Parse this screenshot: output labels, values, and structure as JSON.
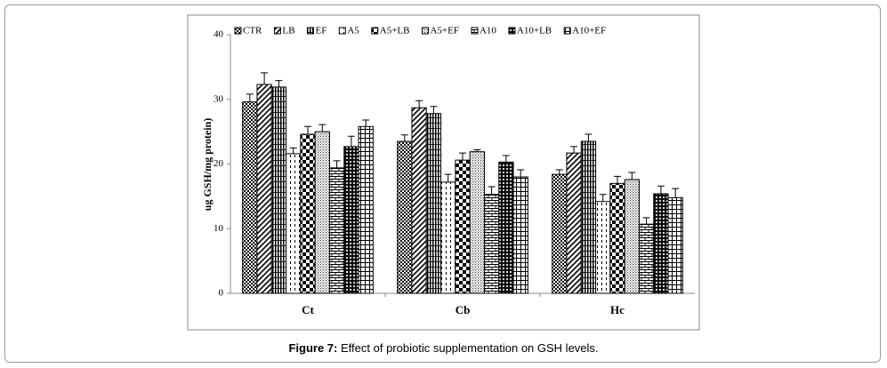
{
  "chart_data": {
    "type": "bar",
    "caption_label": "Figure 7:",
    "caption": "Effect of probiotic supplementation on GSH levels.",
    "y_label": "ug GSH/mg protein)",
    "categories": [
      "Ct",
      "Cb",
      "Hc"
    ],
    "ylim": [
      0,
      40
    ],
    "yticks": [
      0,
      10,
      20,
      30,
      40
    ],
    "legend": "top",
    "series": [
      {
        "name": "CTR",
        "color": "#000000",
        "pattern": "checker",
        "values": [
          29.6,
          23.5,
          18.4
        ],
        "errors": [
          1.2,
          1.0,
          0.7
        ]
      },
      {
        "name": "LB",
        "color": "#000000",
        "pattern": "diagonal",
        "values": [
          32.3,
          28.7,
          21.7
        ],
        "errors": [
          1.8,
          1.1,
          1.0
        ]
      },
      {
        "name": "EF",
        "color": "#000000",
        "pattern": "vstripe",
        "values": [
          31.9,
          27.8,
          23.5
        ],
        "errors": [
          1.0,
          1.1,
          1.1
        ]
      },
      {
        "name": "A5",
        "color": "#000000",
        "pattern": "dashed",
        "values": [
          21.6,
          17.2,
          14.2
        ],
        "errors": [
          0.9,
          1.2,
          1.1
        ]
      },
      {
        "name": "A5+LB",
        "color": "#000000",
        "pattern": "bigcheck",
        "values": [
          24.6,
          20.6,
          17.0
        ],
        "errors": [
          1.2,
          1.1,
          1.1
        ]
      },
      {
        "name": "A5+EF",
        "color": "#000000",
        "pattern": "dots",
        "values": [
          25.0,
          21.9,
          17.6
        ],
        "errors": [
          1.1,
          0.3,
          1.1
        ]
      },
      {
        "name": "A10",
        "color": "#000000",
        "pattern": "brick",
        "values": [
          19.4,
          15.3,
          10.7
        ],
        "errors": [
          1.1,
          1.2,
          1.0
        ]
      },
      {
        "name": "A10+LB",
        "color": "#000000",
        "pattern": "diamond",
        "values": [
          22.7,
          20.3,
          15.4
        ],
        "errors": [
          1.6,
          1.0,
          1.2
        ]
      },
      {
        "name": "A10+EF",
        "color": "#000000",
        "pattern": "grid",
        "values": [
          25.8,
          18.0,
          14.8
        ],
        "errors": [
          1.0,
          1.1,
          1.4
        ]
      }
    ]
  }
}
